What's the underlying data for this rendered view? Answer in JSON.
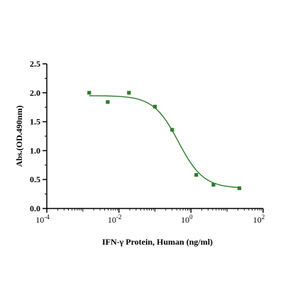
{
  "chart_data": {
    "type": "scatter",
    "xscale": "log",
    "xlabel": "IFN-γ Protein, Human  (ng/ml)",
    "ylabel": "Abs.(OD.490nm)",
    "xlim": [
      0.0001,
      100
    ],
    "ylim": [
      0,
      2.5
    ],
    "yticks": [
      "0.0",
      "0.5",
      "1.0",
      "1.5",
      "2.0",
      "2.5"
    ],
    "xticks": [
      {
        "base": "10",
        "exp": "-4"
      },
      {
        "base": "10",
        "exp": "-2"
      },
      {
        "base": "10",
        "exp": "0"
      },
      {
        "base": "10",
        "exp": "2"
      }
    ],
    "points": [
      {
        "x": 0.0015,
        "y": 2.0
      },
      {
        "x": 0.0049,
        "y": 1.84
      },
      {
        "x": 0.019,
        "y": 2.0
      },
      {
        "x": 0.1,
        "y": 1.76
      },
      {
        "x": 0.3,
        "y": 1.36
      },
      {
        "x": 1.4,
        "y": 0.58
      },
      {
        "x": 4.2,
        "y": 0.41
      },
      {
        "x": 22,
        "y": 0.35
      }
    ],
    "fit_curve": {
      "top": 1.95,
      "bottom": 0.35,
      "ec50": 0.45,
      "hill": 1.25
    },
    "color": "#2e7d2a",
    "grid": false,
    "legend": "none"
  }
}
